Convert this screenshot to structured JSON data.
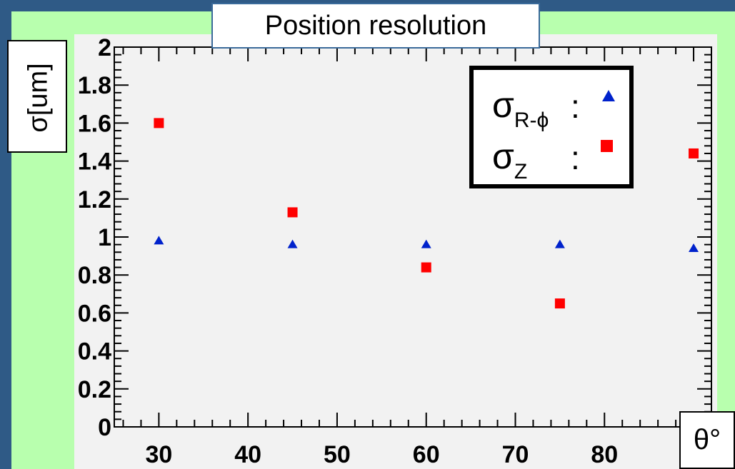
{
  "chart_data": {
    "type": "scatter",
    "title": "Position resolution",
    "xlabel": "θ°",
    "ylabel": "σ[um]",
    "xlim": [
      25,
      92
    ],
    "ylim": [
      0,
      2
    ],
    "x_ticks": [
      30,
      40,
      50,
      60,
      70,
      80,
      90
    ],
    "x_tick_labels": [
      "30",
      "40",
      "50",
      "60",
      "70",
      "80",
      "90"
    ],
    "y_ticks": [
      0,
      0.2,
      0.4,
      0.6,
      0.8,
      1,
      1.2,
      1.4,
      1.6,
      1.8,
      2
    ],
    "y_tick_labels": [
      "0",
      "0.2",
      "0.4",
      "0.6",
      "0.8",
      "1",
      "1.2",
      "1.4",
      "1.6",
      "1.8",
      "2"
    ],
    "grid": false,
    "legend_position": "top-right",
    "series": [
      {
        "name": "σR-ϕ",
        "name_main": "σ",
        "name_sub": "R-ϕ",
        "marker": "triangle",
        "color": "#0022cc",
        "x": [
          30,
          45,
          60,
          75,
          90
        ],
        "y": [
          0.98,
          0.96,
          0.96,
          0.96,
          0.94
        ]
      },
      {
        "name": "σZ",
        "name_main": "σ",
        "name_sub": "Z",
        "marker": "square",
        "color": "#ff0000",
        "x": [
          30,
          45,
          60,
          75,
          90
        ],
        "y": [
          1.6,
          1.13,
          0.84,
          0.65,
          1.44
        ]
      }
    ]
  },
  "legend": {
    "colon": ":"
  }
}
